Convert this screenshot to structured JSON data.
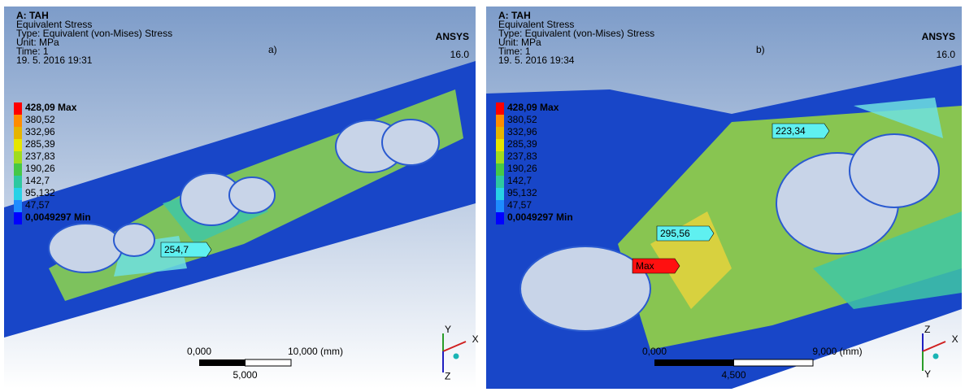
{
  "panels": [
    {
      "header": [
        "A: TAH",
        "Equivalent Stress",
        "Type: Equivalent (von-Mises) Stress",
        "Unit: MPa",
        "Time: 1",
        "19. 5. 2016 19:31"
      ],
      "legend": [
        "428,09 Max",
        "380,52",
        "332,96",
        "285,39",
        "237,83",
        "190,26",
        "142,7",
        "95,132",
        "47,57",
        "0,0049297 Min"
      ],
      "tag": "a)",
      "logo": "ANSYS",
      "version": "16.0",
      "probes": [
        "254,7"
      ],
      "scale": {
        "start": "0,000",
        "end": "10,000 (mm)",
        "mid": "5,000"
      },
      "triad": [
        "Y",
        "X",
        "Z"
      ]
    },
    {
      "header": [
        "A: TAH",
        "Equivalent Stress",
        "Type: Equivalent (von-Mises) Stress",
        "Unit: MPa",
        "Time: 1",
        "19. 5. 2016 19:34"
      ],
      "legend": [
        "428,09 Max",
        "380,52",
        "332,96",
        "285,39",
        "237,83",
        "190,26",
        "142,7",
        "95,132",
        "47,57",
        "0,0049297 Min"
      ],
      "tag": "b)",
      "logo": "ANSYS",
      "version": "16.0",
      "probes": [
        "223,34",
        "295,56",
        "Max"
      ],
      "scale": {
        "start": "0,000",
        "end": "9,000 (mm)",
        "mid": "4,500"
      },
      "triad": [
        "Z",
        "X",
        "Y"
      ]
    }
  ]
}
